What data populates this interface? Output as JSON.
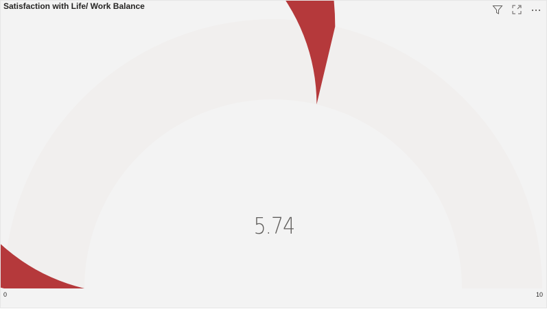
{
  "visual": {
    "title": "Satisfaction with Life/ Work Balance",
    "header_icons": [
      "filter-icon",
      "focus-mode-icon",
      "more-options-icon"
    ]
  },
  "gauge": {
    "value": 5.74,
    "value_label": "5.74",
    "min": 0,
    "max": 10,
    "min_label": "0",
    "max_label": "10",
    "fill_color": "#b5393b",
    "track_color": "#f1efee"
  }
}
